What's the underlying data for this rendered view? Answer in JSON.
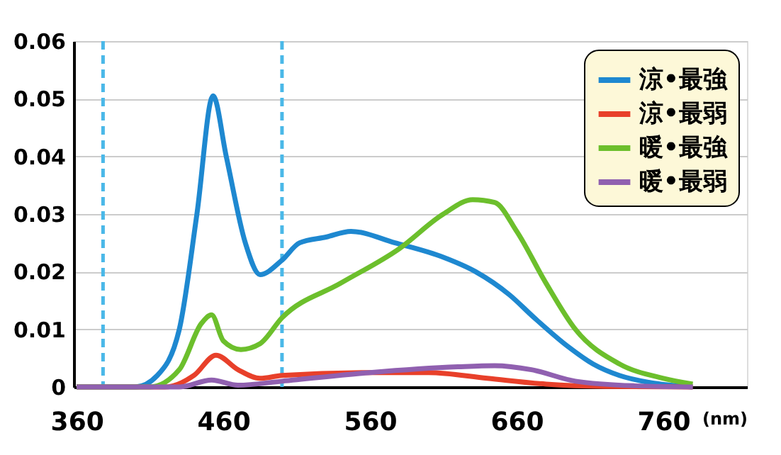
{
  "chart_data": {
    "type": "line",
    "xlabel": "(nm)",
    "xlim": [
      358,
      817
    ],
    "xticks": [
      360,
      460,
      560,
      660,
      760
    ],
    "ylim": [
      0,
      0.06
    ],
    "yticks": [
      0,
      0.01,
      0.02,
      0.03,
      0.04,
      0.05,
      0.06
    ],
    "grid": "y",
    "legend": "top right",
    "line_style": "solid",
    "marker": "none",
    "ref_lines": [
      {
        "axis": "x",
        "value": 378,
        "color": "#4ab8e8",
        "line_style": "dashed"
      },
      {
        "axis": "x",
        "value": 500,
        "color": "#4ab8e8",
        "line_style": "dashed"
      }
    ],
    "series": [
      {
        "name": "涼•最強",
        "color": "#1e88d0",
        "x": [
          360,
          400,
          415,
          430,
          442,
          453,
          462,
          475,
          485,
          500,
          512,
          530,
          547,
          577,
          610,
          632,
          655,
          672,
          695,
          712,
          730,
          750,
          780
        ],
        "values": [
          0,
          0,
          0.002,
          0.01,
          0.03,
          0.0505,
          0.04,
          0.025,
          0.0195,
          0.022,
          0.025,
          0.026,
          0.027,
          0.025,
          0.0225,
          0.02,
          0.016,
          0.012,
          0.007,
          0.004,
          0.002,
          0.0008,
          0
        ]
      },
      {
        "name": "涼•最弱",
        "color": "#e8402a",
        "x": [
          360,
          420,
          440,
          455,
          470,
          485,
          500,
          560,
          600,
          640,
          680,
          720,
          780
        ],
        "values": [
          0,
          0,
          0.002,
          0.0055,
          0.003,
          0.0015,
          0.002,
          0.0025,
          0.0025,
          0.0015,
          0.0005,
          0.0001,
          0
        ]
      },
      {
        "name": "暖•最強",
        "color": "#6cbf2c",
        "x": [
          360,
          410,
          430,
          445,
          452,
          460,
          472,
          485,
          500,
          540,
          580,
          610,
          630,
          645,
          660,
          680,
          700,
          730,
          760,
          780
        ],
        "values": [
          0,
          0,
          0.003,
          0.011,
          0.0125,
          0.008,
          0.0065,
          0.0075,
          0.012,
          0.018,
          0.024,
          0.03,
          0.0325,
          0.032,
          0.027,
          0.018,
          0.01,
          0.004,
          0.0015,
          0.0005
        ]
      },
      {
        "name": "暖•最弱",
        "color": "#9060b0",
        "x": [
          360,
          430,
          452,
          470,
          500,
          560,
          620,
          645,
          670,
          700,
          740,
          780
        ],
        "values": [
          0,
          0,
          0.0012,
          0.0003,
          0.001,
          0.0025,
          0.0035,
          0.0037,
          0.003,
          0.001,
          0.0002,
          0
        ]
      }
    ]
  }
}
